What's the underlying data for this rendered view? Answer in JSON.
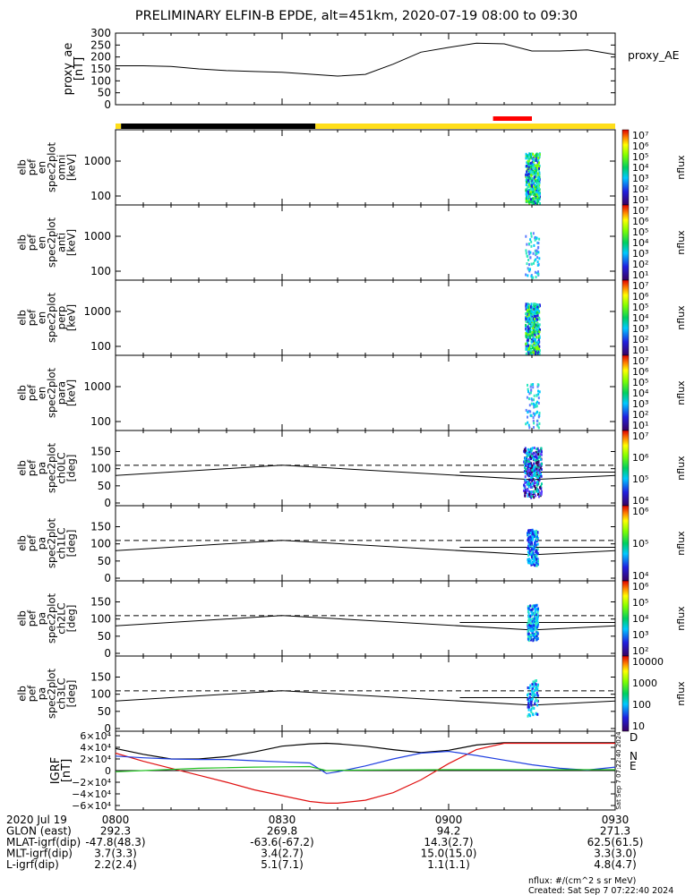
{
  "title": "PRELIMINARY ELFIN-B EPDE, alt=451km, 2020-07-19 08:00 to 09:30",
  "chart_data": {
    "type": "line",
    "time_range_utc": [
      "08:00",
      "09:30"
    ],
    "proxy_ae": {
      "ylabel": [
        "proxy_ae",
        "[nT]"
      ],
      "legend": "proxy_AE",
      "yticks": [
        "300",
        "250",
        "200",
        "150",
        "100",
        "50",
        "0"
      ],
      "ylim": [
        0,
        300
      ],
      "x": [
        0,
        5,
        10,
        15,
        20,
        25,
        30,
        35,
        40,
        45,
        50,
        55,
        60,
        65,
        70,
        75,
        80,
        85,
        90
      ],
      "values": [
        163,
        163,
        160,
        150,
        143,
        139,
        136,
        128,
        120,
        127,
        170,
        220,
        240,
        258,
        255,
        225,
        225,
        230,
        210
      ]
    },
    "status_bar": [
      {
        "state": "daylight",
        "color": "#ffde1a",
        "from_min": 0,
        "to_min": 1
      },
      {
        "state": "eclipse",
        "color": "#000000",
        "from_min": 1,
        "to_min": 36
      },
      {
        "state": "daylight",
        "color": "#ffde1a",
        "from_min": 36,
        "to_min": 90
      },
      {
        "state": "science-zone",
        "color": "#ff0000",
        "from_min": 68,
        "to_min": 75
      }
    ],
    "energy_panels": [
      {
        "ylabel": [
          "elb",
          "pef",
          "en",
          "spec2plot",
          "omni",
          "[keV]"
        ],
        "yticks": [
          "1000",
          "100"
        ],
        "cbar_ticks": [
          "10^7",
          "10^6",
          "10^5",
          "10^4",
          "10^3",
          "10^2",
          "10^1"
        ],
        "cbar_label": "nflux"
      },
      {
        "ylabel": [
          "elb",
          "pef",
          "en",
          "spec2plot",
          "anti",
          "[keV]"
        ],
        "yticks": [
          "1000",
          "100"
        ],
        "cbar_ticks": [
          "10^7",
          "10^6",
          "10^5",
          "10^4",
          "10^3",
          "10^2",
          "10^1"
        ],
        "cbar_label": "nflux"
      },
      {
        "ylabel": [
          "elb",
          "pef",
          "en",
          "spec2plot",
          "perp",
          "[keV]"
        ],
        "yticks": [
          "1000",
          "100"
        ],
        "cbar_ticks": [
          "10^7",
          "10^6",
          "10^5",
          "10^4",
          "10^3",
          "10^2",
          "10^1"
        ],
        "cbar_label": "nflux"
      },
      {
        "ylabel": [
          "elb",
          "pef",
          "en",
          "spec2plot",
          "para",
          "[keV]"
        ],
        "yticks": [
          "1000",
          "100"
        ],
        "cbar_ticks": [
          "10^7",
          "10^6",
          "10^5",
          "10^4",
          "10^3",
          "10^2",
          "10^1"
        ],
        "cbar_label": "nflux"
      }
    ],
    "pa_panels": [
      {
        "ylabel": [
          "elb",
          "pef",
          "pa",
          "spec2plot",
          "ch0LC",
          "[deg]"
        ],
        "yticks": [
          "150",
          "100",
          "50",
          "0"
        ],
        "cbar_ticks": [
          "10^7",
          "10^6",
          "10^5",
          "10^4"
        ],
        "cbar_label": "nflux"
      },
      {
        "ylabel": [
          "elb",
          "pef",
          "pa",
          "spec2plot",
          "ch1LC",
          "[deg]"
        ],
        "yticks": [
          "150",
          "100",
          "50",
          "0"
        ],
        "cbar_ticks": [
          "10^6",
          "10^5",
          "10^4"
        ],
        "cbar_label": "nflux"
      },
      {
        "ylabel": [
          "elb",
          "pef",
          "pa",
          "spec2plot",
          "ch2LC",
          "[deg]"
        ],
        "yticks": [
          "150",
          "100",
          "50",
          "0"
        ],
        "cbar_ticks": [
          "10^6",
          "10^5",
          "10^4",
          "10^3",
          "10^2"
        ],
        "cbar_label": "nflux"
      },
      {
        "ylabel": [
          "elb",
          "pef",
          "pa",
          "spec2plot",
          "ch3LC",
          "[deg]"
        ],
        "yticks": [
          "150",
          "100",
          "50",
          "0"
        ],
        "cbar_ticks": [
          "10000",
          "1000",
          "100",
          "10"
        ],
        "cbar_label": "nflux"
      }
    ],
    "loss_cone_deg": {
      "x": [
        0,
        30,
        75,
        90
      ],
      "lc": [
        80,
        110,
        68,
        80
      ],
      "antilc_const": 110
    },
    "igrf_panel": {
      "ylabel": [
        "IGRF",
        "[nT]"
      ],
      "yticks": [
        "6×10⁴",
        "4×10⁴",
        "2×10⁴",
        "0",
        "−2×10⁴",
        "−4×10⁴",
        "−6×10⁴"
      ],
      "ylim": [
        -60000,
        60000
      ],
      "legend": [
        {
          "name": "D",
          "color": "#e01010"
        },
        {
          "name": "N",
          "color": "#1f3fe0"
        },
        {
          "name": "E",
          "color": "#22c222"
        }
      ],
      "side_stamp": "Sat Sep  7 07:22:40 2024",
      "x": [
        0,
        5,
        10,
        15,
        20,
        25,
        30,
        35,
        38,
        40,
        45,
        50,
        55,
        60,
        65,
        70,
        75,
        80,
        85,
        90
      ],
      "series": [
        {
          "name": "total",
          "color": "#000000",
          "values": [
            38000,
            28000,
            20000,
            20000,
            24000,
            32000,
            42000,
            46000,
            47000,
            46000,
            42000,
            36000,
            31000,
            35000,
            44000,
            48000,
            48000,
            48000,
            48000,
            48000
          ]
        },
        {
          "name": "D",
          "color": "#e01010",
          "values": [
            30000,
            16000,
            4000,
            -8000,
            -20000,
            -33000,
            -43000,
            -53000,
            -56000,
            -56000,
            -51000,
            -38000,
            -16000,
            12000,
            36000,
            47000,
            47000,
            47000,
            47000,
            47000
          ]
        },
        {
          "name": "N",
          "color": "#1f3fe0",
          "values": [
            25000,
            22000,
            20000,
            19000,
            19000,
            17000,
            15000,
            13000,
            -5000,
            -2000,
            8000,
            20000,
            30000,
            33000,
            26000,
            18000,
            10000,
            4000,
            1000,
            6000
          ]
        },
        {
          "name": "E",
          "color": "#22c222",
          "values": [
            -2000,
            0,
            2000,
            4000,
            5000,
            6000,
            6500,
            7000,
            0,
            500,
            1000,
            1200,
            1400,
            1500,
            1500,
            1500,
            1500,
            1500,
            1500,
            1500
          ]
        }
      ]
    },
    "orbit_table": {
      "rows": [
        {
          "label": "2020 Jul 19",
          "values": [
            "0800",
            "0830",
            "0900",
            "0930"
          ]
        },
        {
          "label": "GLON (east)",
          "values": [
            "292.3",
            "269.8",
            "94.2",
            "271.3"
          ]
        },
        {
          "label": "MLAT-igrf(dip)",
          "values": [
            "-47.8(48.3)",
            "-63.6(-67.2)",
            "14.3(2.7)",
            "62.5(61.5)"
          ]
        },
        {
          "label": "MLT-igrf(dip)",
          "values": [
            "3.7(3.3)",
            "3.4(2.7)",
            "15.0(15.0)",
            "3.3(3.0)"
          ]
        },
        {
          "label": "L-igrf(dip)",
          "values": [
            "2.2(2.4)",
            "5.1(7.1)",
            "1.1(1.1)",
            "4.8(4.7)"
          ]
        }
      ]
    },
    "footer": {
      "units": "nflux: #/(cm^2 s sr MeV)",
      "created": "Created: Sat Sep  7 07:22:40 2024"
    }
  }
}
